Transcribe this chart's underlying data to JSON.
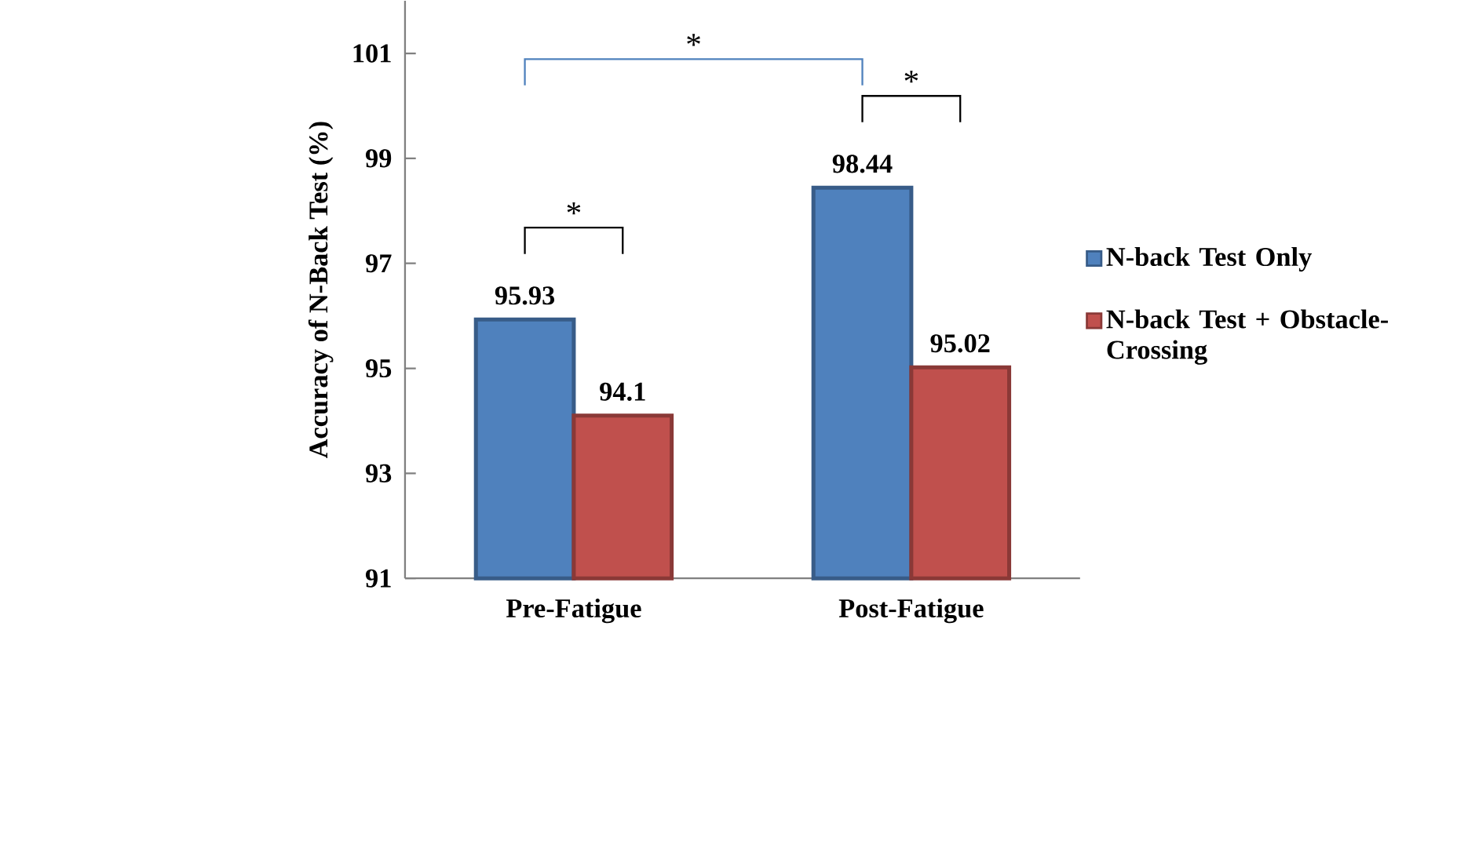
{
  "chart_data": {
    "type": "bar",
    "ylabel": "Accuracy of N-Back Test (%)",
    "categories": [
      "Pre-Fatigue",
      "Post-Fatigue"
    ],
    "series": [
      {
        "name": "N-back Test Only",
        "color": "#4f81bd",
        "values": [
          95.93,
          98.44
        ]
      },
      {
        "name": "N-back Test + Obstacle-Crossing",
        "color": "#c0504d",
        "values": [
          94.1,
          95.02
        ]
      }
    ],
    "ylim": [
      91,
      102
    ],
    "yticks": [
      91,
      93,
      95,
      97,
      99,
      101
    ],
    "data_labels": true,
    "legend": "right",
    "annotations": [
      "*",
      "*",
      "*"
    ]
  }
}
